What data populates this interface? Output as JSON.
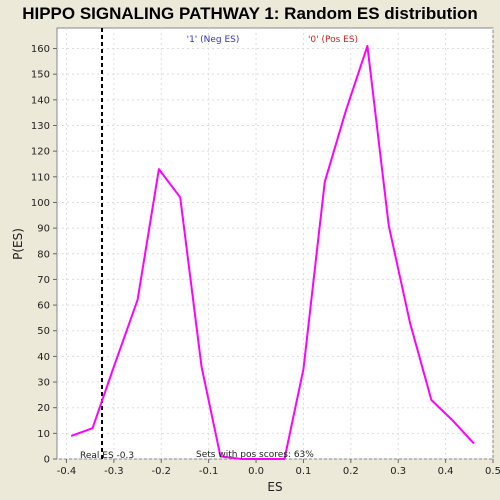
{
  "chart_data": {
    "type": "line",
    "title": "HIPPO SIGNALING PATHWAY 1: Random ES distribution",
    "xlabel": "ES",
    "ylabel": "P(ES)",
    "xlim": [
      -0.42,
      0.5
    ],
    "ylim": [
      0,
      168
    ],
    "x_ticks": [
      -0.4,
      -0.3,
      -0.2,
      -0.1,
      0.0,
      0.1,
      0.2,
      0.3,
      0.4,
      0.5
    ],
    "x_tick_labels": [
      "-0.4",
      "-0.3",
      "-0.2",
      "-0.1",
      "0.0",
      "0.1",
      "0.2",
      "0.3",
      "0.4",
      "0.5"
    ],
    "y_ticks": [
      0,
      10,
      20,
      30,
      40,
      50,
      60,
      70,
      80,
      90,
      100,
      110,
      120,
      130,
      140,
      150,
      160
    ],
    "grid": true,
    "series": [
      {
        "name": "",
        "color": "#ff00ff",
        "x": [
          -0.39,
          -0.345,
          -0.3,
          -0.25,
          -0.205,
          -0.16,
          -0.115,
          -0.075,
          -0.03,
          0.015,
          0.06,
          0.1,
          0.145,
          0.19,
          0.235,
          0.28,
          0.325,
          0.37,
          0.415,
          0.46
        ],
        "y": [
          9,
          12,
          36,
          62,
          113,
          102,
          36,
          1,
          0,
          0,
          0,
          35,
          108,
          136,
          161,
          91,
          53,
          23,
          15,
          6
        ]
      }
    ],
    "legend": [
      {
        "label": "'1' (Neg ES)",
        "color": "#3333cc"
      },
      {
        "label": "'0' (Pos ES)",
        "color": "#cc2222"
      }
    ],
    "annotations": {
      "real_es_label": "Real ES -0.3",
      "real_es_value": -0.325,
      "pos_scores_label": "Sets with pos scores: 63%"
    }
  }
}
